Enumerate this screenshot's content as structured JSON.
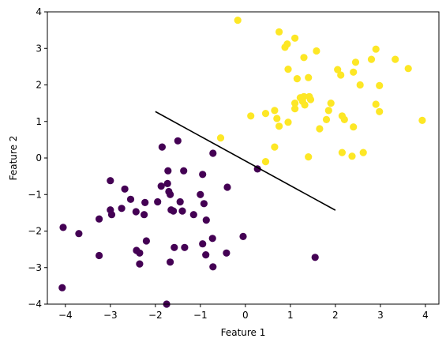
{
  "chart_data": {
    "type": "scatter",
    "xlabel": "Feature 1",
    "ylabel": "Feature 2",
    "xlim": [
      -4.4,
      4.3
    ],
    "ylim": [
      -4,
      4
    ],
    "x_ticks": [
      -4,
      -3,
      -2,
      -1,
      0,
      1,
      2,
      3,
      4
    ],
    "y_ticks": [
      -4,
      -3,
      -2,
      -1,
      0,
      1,
      2,
      3,
      4
    ],
    "x_tick_labels": [
      "−4",
      "−3",
      "−2",
      "−1",
      "0",
      "1",
      "2",
      "3",
      "4"
    ],
    "y_tick_labels": [
      "−4",
      "−3",
      "−2",
      "−1",
      "0",
      "1",
      "2",
      "3",
      "4"
    ],
    "grid": false,
    "colors": {
      "class0": "#440154",
      "class1": "#fde725",
      "boundary": "#000000"
    },
    "series": [
      {
        "class": 0,
        "color": "#440154",
        "points": [
          [
            -4.05,
            -1.9
          ],
          [
            -3.7,
            -2.07
          ],
          [
            -4.07,
            -3.55
          ],
          [
            -3.25,
            -1.67
          ],
          [
            -3.25,
            -2.67
          ],
          [
            -3.0,
            -0.62
          ],
          [
            -3.0,
            -1.42
          ],
          [
            -2.97,
            -1.55
          ],
          [
            -2.75,
            -1.38
          ],
          [
            -2.68,
            -0.85
          ],
          [
            -2.55,
            -1.13
          ],
          [
            -2.43,
            -1.47
          ],
          [
            -2.42,
            -2.53
          ],
          [
            -2.35,
            -2.6
          ],
          [
            -2.35,
            -2.9
          ],
          [
            -2.25,
            -1.55
          ],
          [
            -2.23,
            -1.22
          ],
          [
            -2.2,
            -2.27
          ],
          [
            -1.95,
            -1.2
          ],
          [
            -1.87,
            -0.77
          ],
          [
            -1.85,
            0.3
          ],
          [
            -1.72,
            -0.35
          ],
          [
            -1.73,
            -0.7
          ],
          [
            -1.7,
            -0.92
          ],
          [
            -1.67,
            -1.0
          ],
          [
            -1.65,
            -1.42
          ],
          [
            -1.6,
            -1.45
          ],
          [
            -1.58,
            -2.45
          ],
          [
            -1.67,
            -2.85
          ],
          [
            -1.5,
            0.47
          ],
          [
            -1.45,
            -1.2
          ],
          [
            -1.4,
            -1.45
          ],
          [
            -1.37,
            -0.35
          ],
          [
            -1.35,
            -2.45
          ],
          [
            -1.15,
            -1.55
          ],
          [
            -1.0,
            -1.0
          ],
          [
            -0.95,
            -0.45
          ],
          [
            -0.92,
            -1.25
          ],
          [
            -0.87,
            -1.7
          ],
          [
            -0.95,
            -2.35
          ],
          [
            -0.88,
            -2.65
          ],
          [
            -0.72,
            0.13
          ],
          [
            -0.73,
            -2.2
          ],
          [
            -0.72,
            -2.98
          ],
          [
            -0.4,
            -0.8
          ],
          [
            -0.42,
            -2.6
          ],
          [
            -0.05,
            -2.15
          ],
          [
            0.27,
            -0.3
          ],
          [
            1.55,
            -2.72
          ],
          [
            -1.75,
            -4.0
          ]
        ]
      },
      {
        "class": 1,
        "color": "#fde725",
        "points": [
          [
            -0.17,
            3.77
          ],
          [
            0.75,
            3.45
          ],
          [
            0.88,
            3.03
          ],
          [
            0.93,
            3.12
          ],
          [
            1.1,
            3.28
          ],
          [
            1.3,
            2.75
          ],
          [
            1.58,
            2.93
          ],
          [
            0.95,
            2.43
          ],
          [
            1.15,
            2.17
          ],
          [
            1.4,
            2.2
          ],
          [
            0.12,
            1.15
          ],
          [
            0.45,
            1.22
          ],
          [
            0.65,
            1.3
          ],
          [
            0.7,
            1.08
          ],
          [
            0.75,
            0.87
          ],
          [
            0.95,
            0.98
          ],
          [
            1.1,
            1.35
          ],
          [
            1.22,
            1.65
          ],
          [
            1.27,
            1.55
          ],
          [
            1.3,
            1.68
          ],
          [
            1.32,
            1.45
          ],
          [
            1.42,
            1.68
          ],
          [
            1.45,
            1.6
          ],
          [
            1.1,
            1.5
          ],
          [
            1.65,
            0.8
          ],
          [
            1.8,
            1.05
          ],
          [
            1.85,
            1.3
          ],
          [
            1.9,
            1.5
          ],
          [
            2.05,
            2.42
          ],
          [
            2.12,
            2.27
          ],
          [
            2.15,
            1.15
          ],
          [
            2.2,
            1.05
          ],
          [
            2.4,
            2.35
          ],
          [
            2.45,
            2.62
          ],
          [
            2.55,
            2.0
          ],
          [
            2.4,
            0.85
          ],
          [
            2.15,
            0.15
          ],
          [
            2.37,
            0.05
          ],
          [
            2.62,
            0.15
          ],
          [
            2.8,
            2.7
          ],
          [
            2.9,
            2.98
          ],
          [
            2.9,
            1.47
          ],
          [
            2.98,
            1.98
          ],
          [
            2.98,
            1.27
          ],
          [
            3.33,
            2.7
          ],
          [
            3.62,
            2.45
          ],
          [
            3.93,
            1.03
          ],
          [
            0.45,
            -0.1
          ],
          [
            0.65,
            0.3
          ],
          [
            1.4,
            0.03
          ],
          [
            -0.55,
            0.55
          ]
        ]
      }
    ],
    "boundary_line": [
      [
        -2.0,
        1.27
      ],
      [
        2.0,
        -1.43
      ]
    ]
  }
}
